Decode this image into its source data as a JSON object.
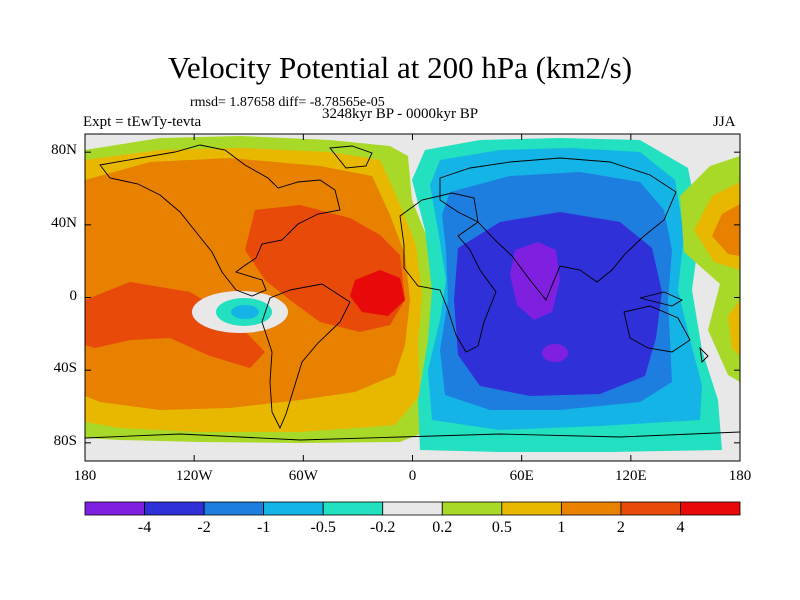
{
  "title": "Velocity Potential at 200 hPa (km2/s)",
  "stats": "rmsd= 1.87658 diff= -8.78565e-05",
  "period": "3248kyr BP - 0000kyr BP",
  "experiment": "Expt = tEwTy-tevta",
  "season": "JJA",
  "map": {
    "lat_ticks": [
      {
        "label": "80N",
        "value": 80
      },
      {
        "label": "40N",
        "value": 40
      },
      {
        "label": "0",
        "value": 0
      },
      {
        "label": "40S",
        "value": -40
      },
      {
        "label": "80S",
        "value": -80
      }
    ],
    "lon_ticks": [
      {
        "label": "180",
        "value": -180
      },
      {
        "label": "120W",
        "value": -120
      },
      {
        "label": "60W",
        "value": -60
      },
      {
        "label": "0",
        "value": 0
      },
      {
        "label": "60E",
        "value": 60
      },
      {
        "label": "120E",
        "value": 120
      },
      {
        "label": "180",
        "value": 180
      }
    ]
  },
  "colorbar": {
    "colors": [
      "#7f1fe0",
      "#3030d8",
      "#1e7ee0",
      "#14b4e6",
      "#22e0c0",
      "#e8e8e8",
      "#a8d828",
      "#e8b800",
      "#e88000",
      "#e84a0a",
      "#e80a0a"
    ],
    "labels": [
      "-4",
      "-2",
      "-1",
      "-0.5",
      "-0.2",
      "0.2",
      "0.5",
      "1",
      "2",
      "4"
    ]
  }
}
